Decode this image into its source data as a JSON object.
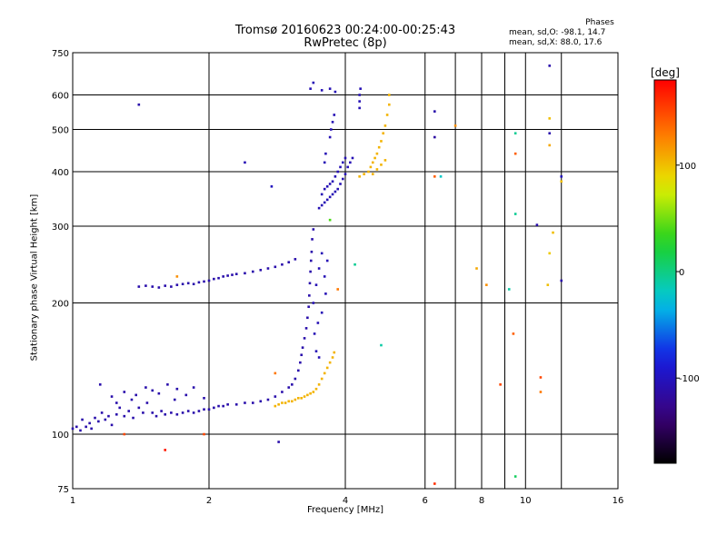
{
  "chart_data": {
    "type": "scatter",
    "title": "Tromsø 20160623 00:24:00-00:25:43",
    "subtitle": "RwPretec (8p)",
    "xlabel": "Frequency [MHz]",
    "ylabel": "Stationary phase Virtual Height [km]",
    "x_scale": "log",
    "y_scale": "log",
    "xlim": [
      1,
      16
    ],
    "ylim": [
      75,
      750
    ],
    "x_ticks": [
      1,
      2,
      4,
      6,
      8,
      10,
      16
    ],
    "x_minor_grid": [
      7,
      9,
      12
    ],
    "y_ticks": [
      75,
      100,
      200,
      300,
      400,
      500,
      600,
      750
    ],
    "grid": true,
    "stats": {
      "title": "Phases",
      "line1": "mean, sd,O:  -98.1, 14.7",
      "line2": "mean, sd,X:  88.0, 17.6"
    },
    "colorbar": {
      "label": "[deg]",
      "range": [
        -180,
        180
      ],
      "ticks": [
        100,
        0,
        -100
      ],
      "colormap": "rainbow"
    },
    "series": [
      {
        "role": "O-mode E/F1 trace",
        "phase": -110,
        "points": [
          [
            1.0,
            103
          ],
          [
            1.02,
            104
          ],
          [
            1.04,
            102
          ],
          [
            1.05,
            108
          ],
          [
            1.07,
            104
          ],
          [
            1.09,
            106
          ],
          [
            1.1,
            103
          ],
          [
            1.12,
            109
          ],
          [
            1.14,
            107
          ],
          [
            1.16,
            112
          ],
          [
            1.18,
            108
          ],
          [
            1.2,
            110
          ],
          [
            1.22,
            105
          ],
          [
            1.25,
            111
          ],
          [
            1.27,
            115
          ],
          [
            1.3,
            110
          ],
          [
            1.33,
            113
          ],
          [
            1.36,
            109
          ],
          [
            1.4,
            115
          ],
          [
            1.43,
            112
          ],
          [
            1.46,
            118
          ],
          [
            1.5,
            112
          ],
          [
            1.53,
            110
          ],
          [
            1.57,
            113
          ],
          [
            1.6,
            111
          ],
          [
            1.65,
            112
          ],
          [
            1.7,
            111
          ],
          [
            1.75,
            112
          ],
          [
            1.8,
            113
          ],
          [
            1.85,
            112
          ],
          [
            1.9,
            113
          ],
          [
            1.95,
            114
          ],
          [
            2.0,
            114
          ],
          [
            2.05,
            115
          ],
          [
            2.1,
            116
          ],
          [
            2.15,
            116
          ],
          [
            2.2,
            117
          ],
          [
            2.3,
            117
          ],
          [
            2.4,
            118
          ],
          [
            2.5,
            118
          ],
          [
            2.6,
            119
          ],
          [
            2.7,
            120
          ],
          [
            2.8,
            122
          ],
          [
            2.9,
            125
          ],
          [
            3.0,
            128
          ],
          [
            3.05,
            130
          ],
          [
            3.1,
            134
          ],
          [
            3.15,
            140
          ],
          [
            3.18,
            146
          ],
          [
            3.2,
            152
          ],
          [
            3.22,
            158
          ],
          [
            3.25,
            166
          ],
          [
            3.28,
            175
          ],
          [
            3.3,
            185
          ],
          [
            3.32,
            196
          ],
          [
            3.33,
            208
          ],
          [
            3.34,
            222
          ],
          [
            3.35,
            236
          ],
          [
            3.36,
            250
          ],
          [
            3.37,
            262
          ],
          [
            3.38,
            280
          ],
          [
            3.4,
            295
          ],
          [
            1.15,
            130
          ],
          [
            1.22,
            122
          ],
          [
            1.3,
            125
          ],
          [
            1.35,
            120
          ],
          [
            1.45,
            128
          ],
          [
            1.55,
            124
          ],
          [
            1.62,
            130
          ],
          [
            1.7,
            127
          ],
          [
            1.78,
            123
          ],
          [
            1.85,
            128
          ],
          [
            1.25,
            118
          ],
          [
            1.38,
            123
          ],
          [
            1.5,
            126
          ],
          [
            1.68,
            120
          ],
          [
            1.95,
            121
          ]
        ]
      },
      {
        "role": "O-mode F2 lower trace",
        "phase": -110,
        "points": [
          [
            1.4,
            218
          ],
          [
            1.45,
            219
          ],
          [
            1.5,
            218
          ],
          [
            1.55,
            217
          ],
          [
            1.6,
            219
          ],
          [
            1.65,
            218
          ],
          [
            1.7,
            220
          ],
          [
            1.75,
            221
          ],
          [
            1.8,
            222
          ],
          [
            1.85,
            221
          ],
          [
            1.9,
            223
          ],
          [
            1.95,
            224
          ],
          [
            2.0,
            225
          ],
          [
            2.05,
            227
          ],
          [
            2.1,
            228
          ],
          [
            2.15,
            230
          ],
          [
            2.2,
            231
          ],
          [
            2.25,
            232
          ],
          [
            2.3,
            233
          ],
          [
            2.4,
            234
          ],
          [
            2.5,
            236
          ],
          [
            2.6,
            238
          ],
          [
            2.7,
            240
          ],
          [
            2.8,
            242
          ],
          [
            2.9,
            245
          ],
          [
            3.0,
            248
          ],
          [
            3.1,
            252
          ]
        ]
      },
      {
        "role": "O-mode F2 upper trace",
        "phase": -105,
        "points": [
          [
            3.4,
            200
          ],
          [
            3.45,
            220
          ],
          [
            3.5,
            240
          ],
          [
            3.55,
            260
          ],
          [
            3.6,
            230
          ],
          [
            3.62,
            210
          ],
          [
            3.65,
            250
          ],
          [
            3.55,
            190
          ],
          [
            3.48,
            180
          ],
          [
            3.42,
            170
          ],
          [
            3.45,
            155
          ],
          [
            3.5,
            150
          ],
          [
            3.5,
            330
          ],
          [
            3.55,
            335
          ],
          [
            3.6,
            340
          ],
          [
            3.65,
            345
          ],
          [
            3.7,
            350
          ],
          [
            3.75,
            355
          ],
          [
            3.8,
            360
          ],
          [
            3.85,
            365
          ],
          [
            3.9,
            375
          ],
          [
            3.95,
            385
          ],
          [
            4.0,
            395
          ],
          [
            4.05,
            410
          ],
          [
            4.1,
            420
          ],
          [
            4.15,
            430
          ],
          [
            3.55,
            355
          ],
          [
            3.6,
            365
          ],
          [
            3.65,
            370
          ],
          [
            3.7,
            375
          ],
          [
            3.75,
            380
          ],
          [
            3.8,
            390
          ],
          [
            3.85,
            400
          ],
          [
            3.9,
            410
          ],
          [
            3.95,
            420
          ],
          [
            4.0,
            430
          ],
          [
            3.7,
            480
          ],
          [
            3.72,
            500
          ],
          [
            3.75,
            520
          ],
          [
            3.78,
            540
          ],
          [
            3.6,
            420
          ],
          [
            3.62,
            440
          ],
          [
            4.3,
            560
          ],
          [
            4.3,
            580
          ],
          [
            4.3,
            600
          ],
          [
            4.32,
            620
          ],
          [
            3.55,
            615
          ],
          [
            3.7,
            620
          ],
          [
            3.8,
            610
          ],
          [
            3.4,
            640
          ],
          [
            3.35,
            620
          ]
        ]
      },
      {
        "role": "X-mode trace",
        "phase": 105,
        "points": [
          [
            2.8,
            116
          ],
          [
            2.85,
            117
          ],
          [
            2.9,
            118
          ],
          [
            2.95,
            118
          ],
          [
            3.0,
            119
          ],
          [
            3.05,
            119
          ],
          [
            3.1,
            120
          ],
          [
            3.15,
            121
          ],
          [
            3.2,
            121
          ],
          [
            3.25,
            122
          ],
          [
            3.3,
            123
          ],
          [
            3.35,
            124
          ],
          [
            3.4,
            125
          ],
          [
            3.45,
            127
          ],
          [
            3.5,
            130
          ],
          [
            3.55,
            134
          ],
          [
            3.6,
            138
          ],
          [
            3.65,
            142
          ],
          [
            3.7,
            146
          ],
          [
            3.75,
            150
          ],
          [
            3.78,
            154
          ],
          [
            4.3,
            390
          ],
          [
            4.4,
            395
          ],
          [
            4.5,
            400
          ],
          [
            4.55,
            410
          ],
          [
            4.6,
            420
          ],
          [
            4.65,
            430
          ],
          [
            4.7,
            440
          ],
          [
            4.75,
            455
          ],
          [
            4.8,
            470
          ],
          [
            4.85,
            490
          ],
          [
            4.9,
            510
          ],
          [
            4.95,
            540
          ],
          [
            5.0,
            570
          ],
          [
            5.0,
            600
          ],
          [
            4.6,
            395
          ],
          [
            4.7,
            405
          ],
          [
            4.8,
            415
          ],
          [
            4.9,
            425
          ]
        ]
      },
      {
        "role": "scattered echoes",
        "points": [
          [
            1.4,
            570,
            -110
          ],
          [
            2.4,
            420,
            -105
          ],
          [
            2.75,
            370,
            -100
          ],
          [
            1.7,
            230,
            120
          ],
          [
            1.95,
            100,
            150
          ],
          [
            1.6,
            92,
            170
          ],
          [
            1.3,
            100,
            150
          ],
          [
            2.8,
            138,
            130
          ],
          [
            4.2,
            245,
            -5
          ],
          [
            3.85,
            215,
            130
          ],
          [
            3.7,
            310,
            40
          ],
          [
            2.85,
            96,
            -110
          ],
          [
            4.8,
            160,
            -10
          ],
          [
            6.3,
            550,
            -110
          ],
          [
            6.3,
            480,
            -115
          ],
          [
            6.3,
            390,
            140
          ],
          [
            6.5,
            390,
            -20
          ],
          [
            6.3,
            77,
            160
          ],
          [
            7.0,
            510,
            120
          ],
          [
            7.8,
            240,
            110
          ],
          [
            8.2,
            220,
            120
          ],
          [
            8.8,
            130,
            150
          ],
          [
            9.2,
            215,
            -10
          ],
          [
            9.5,
            490,
            -5
          ],
          [
            9.5,
            440,
            140
          ],
          [
            9.5,
            320,
            -5
          ],
          [
            9.4,
            170,
            140
          ],
          [
            9.5,
            80,
            10
          ],
          [
            10.6,
            302,
            -110
          ],
          [
            10.8,
            135,
            150
          ],
          [
            10.8,
            125,
            130
          ],
          [
            11.3,
            700,
            -110
          ],
          [
            11.3,
            530,
            100
          ],
          [
            11.3,
            490,
            -110
          ],
          [
            11.3,
            460,
            110
          ],
          [
            11.5,
            290,
            100
          ],
          [
            11.3,
            260,
            95
          ],
          [
            11.2,
            220,
            100
          ],
          [
            12.0,
            390,
            -100
          ],
          [
            12.0,
            380,
            100
          ],
          [
            12.0,
            225,
            -110
          ]
        ]
      }
    ]
  }
}
